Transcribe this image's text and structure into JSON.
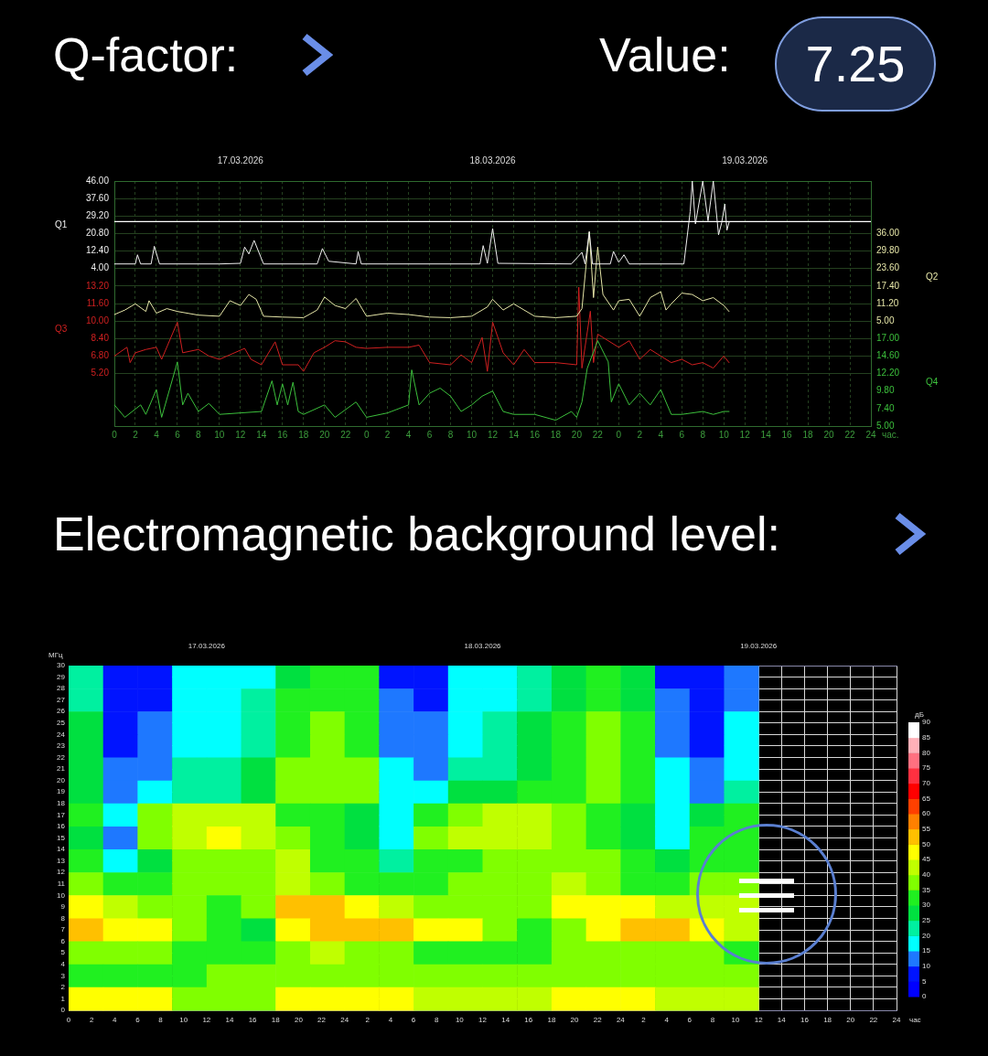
{
  "chart_data": [
    {
      "type": "line",
      "title": "Q-factor:",
      "annotations": [
        "Value:",
        "7.25"
      ],
      "xlim": [
        "2026-03-17T00:00",
        "2026-03-20T00:00"
      ],
      "xticks": [
        {
          "value": "2026-03-17T00:00",
          "label": "0"
        },
        {
          "value": "2026-03-17T02:00",
          "label": "2"
        },
        {
          "value": "2026-03-17T04:00",
          "label": "4"
        },
        {
          "value": "2026-03-17T06:00",
          "label": "6"
        },
        {
          "value": "2026-03-17T08:00",
          "label": "8"
        },
        {
          "value": "2026-03-17T10:00",
          "label": "10"
        },
        {
          "value": "2026-03-17T12:00",
          "label": "12"
        },
        {
          "value": "2026-03-17T14:00",
          "label": "14"
        },
        {
          "value": "2026-03-17T16:00",
          "label": "16"
        },
        {
          "value": "2026-03-17T18:00",
          "label": "18"
        },
        {
          "value": "2026-03-17T20:00",
          "label": "20"
        },
        {
          "value": "2026-03-17T22:00",
          "label": "22"
        },
        {
          "value": "2026-03-18T00:00",
          "label": "0"
        },
        {
          "value": "2026-03-18T02:00",
          "label": "2"
        },
        {
          "value": "2026-03-18T04:00",
          "label": "4"
        },
        {
          "value": "2026-03-18T06:00",
          "label": "6"
        },
        {
          "value": "2026-03-18T08:00",
          "label": "8"
        },
        {
          "value": "2026-03-18T10:00",
          "label": "10"
        },
        {
          "value": "2026-03-18T12:00",
          "label": "12"
        },
        {
          "value": "2026-03-18T14:00",
          "label": "14"
        },
        {
          "value": "2026-03-18T16:00",
          "label": "16"
        },
        {
          "value": "2026-03-18T18:00",
          "label": "18"
        },
        {
          "value": "2026-03-18T20:00",
          "label": "20"
        },
        {
          "value": "2026-03-18T22:00",
          "label": "22"
        },
        {
          "value": "2026-03-19T00:00",
          "label": "0"
        },
        {
          "value": "2026-03-19T02:00",
          "label": "2"
        },
        {
          "value": "2026-03-19T04:00",
          "label": "4"
        },
        {
          "value": "2026-03-19T06:00",
          "label": "6"
        },
        {
          "value": "2026-03-19T08:00",
          "label": "8"
        },
        {
          "value": "2026-03-19T10:00",
          "label": "10"
        },
        {
          "value": "2026-03-19T12:00",
          "label": "12"
        },
        {
          "value": "2026-03-19T14:00",
          "label": "14"
        },
        {
          "value": "2026-03-19T16:00",
          "label": "16"
        },
        {
          "value": "2026-03-19T18:00",
          "label": "18"
        },
        {
          "value": "2026-03-19T20:00",
          "label": "20"
        },
        {
          "value": "2026-03-19T22:00",
          "label": "22"
        },
        {
          "value": "2026-03-20T00:00",
          "label": "24"
        }
      ],
      "xlabel": "час.",
      "x2lim": [
        "2026-03-17T00:00",
        "2026-03-20T00:00"
      ],
      "x2ticks": [
        {
          "value": "2026-03-17T12:00",
          "label": "17.03.2026"
        },
        {
          "value": "2026-03-18T12:00",
          "label": "18.03.2026"
        },
        {
          "value": "2026-03-19T12:00",
          "label": "19.03.2026"
        }
      ],
      "ylim": [
        -71.6,
        46
      ],
      "yticks": [
        {
          "value": 46,
          "label": "46.00"
        },
        {
          "value": 37.6,
          "label": "37.60"
        },
        {
          "value": 29.2,
          "label": "29.20"
        },
        {
          "value": 20.8,
          "label": "20.80"
        },
        {
          "value": 12.4,
          "label": "12.40"
        },
        {
          "value": 4,
          "label": "4.00"
        }
      ],
      "ylabel": "Q1",
      "y2lim": [
        -32.2,
        54.6
      ],
      "y2ticks": [
        {
          "value": 36,
          "label": "36.00"
        },
        {
          "value": 29.8,
          "label": "29.80"
        },
        {
          "value": 23.6,
          "label": "23.60"
        },
        {
          "value": 17.4,
          "label": "17.40"
        },
        {
          "value": 11.2,
          "label": "11.20"
        },
        {
          "value": 5,
          "label": "5.00"
        }
      ],
      "y2label": "Q2",
      "y3lim": [
        0.4,
        22.8
      ],
      "y3ticks": [
        {
          "value": 13.2,
          "label": "13.20"
        },
        {
          "value": 11.6,
          "label": "11.60"
        },
        {
          "value": 10,
          "label": "10.00"
        },
        {
          "value": 8.4,
          "label": "8.40"
        },
        {
          "value": 6.8,
          "label": "6.80"
        },
        {
          "value": 5.2,
          "label": "5.20"
        }
      ],
      "y3label": "Q3",
      "grid": true,
      "ref_lines": [
        {
          "axis": "y",
          "value": 26.5,
          "color": "#ffffff"
        }
      ],
      "series": [
        {
          "color": "#f0f0f0",
          "axis": "y",
          "x": [
            "2026-03-17T00:00",
            "2026-03-17T02:00",
            "2026-03-17T02:12",
            "2026-03-17T02:30",
            "2026-03-17T03:30",
            "2026-03-17T03:48",
            "2026-03-17T04:18",
            "2026-03-17T10:00",
            "2026-03-17T12:00",
            "2026-03-17T12:24",
            "2026-03-17T12:48",
            "2026-03-17T13:18",
            "2026-03-17T14:12",
            "2026-03-17T19:18",
            "2026-03-17T19:48",
            "2026-03-17T20:24",
            "2026-03-17T23:00",
            "2026-03-17T23:12",
            "2026-03-17T23:30",
            "2026-03-18T10:48",
            "2026-03-18T11:06",
            "2026-03-18T11:30",
            "2026-03-18T12:00",
            "2026-03-18T12:30",
            "2026-03-18T19:30",
            "2026-03-18T20:30",
            "2026-03-18T20:48",
            "2026-03-18T21:12",
            "2026-03-18T21:30",
            "2026-03-18T23:12",
            "2026-03-18T23:30",
            "2026-03-19T00:00",
            "2026-03-19T00:30",
            "2026-03-19T01:00",
            "2026-03-19T06:12",
            "2026-03-19T06:48",
            "2026-03-19T07:00",
            "2026-03-19T07:18",
            "2026-03-19T08:00",
            "2026-03-19T08:30",
            "2026-03-19T09:00",
            "2026-03-19T09:30",
            "2026-03-19T09:48",
            "2026-03-19T10:06",
            "2026-03-19T10:18",
            "2026-03-19T10:30"
          ],
          "values": [
            6.2,
            6.2,
            10.6,
            6.2,
            6.2,
            14.7,
            6.2,
            6.2,
            6.5,
            14.3,
            11,
            17.5,
            6.2,
            6.2,
            13.6,
            7.5,
            6.2,
            12.1,
            6.2,
            6.2,
            15,
            6.5,
            23.2,
            6.5,
            6.2,
            11.8,
            6.2,
            21.7,
            6.2,
            6.2,
            12.2,
            7,
            10.6,
            6.2,
            6.2,
            31.3,
            46,
            25.4,
            46,
            26.9,
            46,
            20.2,
            26,
            35,
            22.4,
            26.1
          ]
        },
        {
          "color": "#e6e6a8",
          "axis": "y2",
          "x": [
            "2026-03-17T00:00",
            "2026-03-17T01:00",
            "2026-03-17T02:00",
            "2026-03-17T03:00",
            "2026-03-17T03:18",
            "2026-03-17T04:00",
            "2026-03-17T05:00",
            "2026-03-17T06:00",
            "2026-03-17T08:00",
            "2026-03-17T10:00",
            "2026-03-17T11:00",
            "2026-03-17T12:00",
            "2026-03-17T12:48",
            "2026-03-17T13:30",
            "2026-03-17T14:12",
            "2026-03-17T16:00",
            "2026-03-17T18:00",
            "2026-03-17T19:18",
            "2026-03-17T20:00",
            "2026-03-17T21:00",
            "2026-03-17T22:00",
            "2026-03-17T23:00",
            "2026-03-18T00:00",
            "2026-03-18T02:00",
            "2026-03-18T04:00",
            "2026-03-18T06:00",
            "2026-03-18T08:00",
            "2026-03-18T10:00",
            "2026-03-18T11:30",
            "2026-03-18T12:00",
            "2026-03-18T13:00",
            "2026-03-18T14:00",
            "2026-03-18T14:30",
            "2026-03-18T16:00",
            "2026-03-18T18:00",
            "2026-03-18T20:00",
            "2026-03-18T20:30",
            "2026-03-18T21:12",
            "2026-03-18T21:36",
            "2026-03-18T22:00",
            "2026-03-18T22:30",
            "2026-03-18T23:30",
            "2026-03-19T00:00",
            "2026-03-19T01:00",
            "2026-03-19T02:00",
            "2026-03-19T03:00",
            "2026-03-19T04:00",
            "2026-03-19T04:30",
            "2026-03-19T05:00",
            "2026-03-19T06:00",
            "2026-03-19T07:00",
            "2026-03-19T08:00",
            "2026-03-19T09:00",
            "2026-03-19T10:00",
            "2026-03-19T10:30"
          ],
          "values": [
            7.3,
            8.9,
            11.1,
            8.4,
            12.2,
            7.8,
            9.4,
            8.4,
            7.1,
            6.7,
            12.2,
            10.5,
            14.4,
            12.7,
            6.7,
            6.4,
            6.2,
            8.9,
            13.5,
            10.5,
            9.4,
            13.0,
            6.7,
            7.8,
            7.3,
            6.4,
            6.2,
            6.7,
            10.0,
            12.7,
            8.9,
            11.1,
            10.0,
            6.7,
            6.2,
            6.7,
            9.4,
            36.6,
            13.3,
            31.2,
            14.4,
            8.9,
            12.2,
            12.7,
            6.7,
            13.3,
            15.4,
            8.9,
            11.1,
            14.9,
            14.4,
            12.2,
            13.3,
            10.5,
            8.4
          ]
        },
        {
          "color": "#d02020",
          "axis": "y3",
          "x": [
            "2026-03-17T00:00",
            "2026-03-17T01:12",
            "2026-03-17T01:30",
            "2026-03-17T02:00",
            "2026-03-17T03:00",
            "2026-03-17T04:00",
            "2026-03-17T04:30",
            "2026-03-17T06:00",
            "2026-03-17T06:30",
            "2026-03-17T08:00",
            "2026-03-17T09:00",
            "2026-03-17T10:00",
            "2026-03-17T12:24",
            "2026-03-17T13:00",
            "2026-03-17T14:00",
            "2026-03-17T15:18",
            "2026-03-17T16:00",
            "2026-03-17T17:30",
            "2026-03-17T18:00",
            "2026-03-17T19:00",
            "2026-03-17T20:00",
            "2026-03-17T21:00",
            "2026-03-17T22:00",
            "2026-03-17T23:00",
            "2026-03-18T00:00",
            "2026-03-18T02:00",
            "2026-03-18T04:00",
            "2026-03-18T05:00",
            "2026-03-18T06:00",
            "2026-03-18T08:00",
            "2026-03-18T09:00",
            "2026-03-18T10:00",
            "2026-03-18T11:00",
            "2026-03-18T11:30",
            "2026-03-18T12:00",
            "2026-03-18T13:00",
            "2026-03-18T14:00",
            "2026-03-18T15:00",
            "2026-03-18T16:00",
            "2026-03-18T18:00",
            "2026-03-18T20:00",
            "2026-03-18T20:12",
            "2026-03-18T20:30",
            "2026-03-18T21:18",
            "2026-03-18T21:36",
            "2026-03-18T22:00",
            "2026-03-18T23:00",
            "2026-03-19T00:00",
            "2026-03-19T01:00",
            "2026-03-19T02:00",
            "2026-03-19T03:00",
            "2026-03-19T04:00",
            "2026-03-19T05:00",
            "2026-03-19T06:00",
            "2026-03-19T07:00",
            "2026-03-19T08:00",
            "2026-03-19T09:00",
            "2026-03-19T10:00",
            "2026-03-19T10:30"
          ],
          "values": [
            6.8,
            7.6,
            6.2,
            7.1,
            7.4,
            7.6,
            6.5,
            9.9,
            7.1,
            7.4,
            6.8,
            6.5,
            7.5,
            6.5,
            6.0,
            8.1,
            6.0,
            6.0,
            5.4,
            7.1,
            7.6,
            8.2,
            8.1,
            7.6,
            7.5,
            7.6,
            7.6,
            7.8,
            6.2,
            6.0,
            6.9,
            6.2,
            8.5,
            5.4,
            9.9,
            7.1,
            6.0,
            7.4,
            6.2,
            6.2,
            6.0,
            13.1,
            5.7,
            10.9,
            6.2,
            8.8,
            8.2,
            7.6,
            8.2,
            6.5,
            7.4,
            6.8,
            6.2,
            6.5,
            6.0,
            6.2,
            5.7,
            6.8,
            6.2
          ]
        }
      ]
    },
    {
      "type": "line",
      "xlim": [
        "2026-03-17T00:00",
        "2026-03-20T00:00"
      ],
      "tick_labels": "y",
      "y2lim": [
        5,
        38.6
      ],
      "y2ticks": [
        {
          "value": 17,
          "label": "17.00"
        },
        {
          "value": 14.6,
          "label": "14.60"
        },
        {
          "value": 12.2,
          "label": "12.20"
        },
        {
          "value": 9.8,
          "label": "9.80"
        },
        {
          "value": 7.4,
          "label": "7.40"
        },
        {
          "value": 5,
          "label": "5.00"
        }
      ],
      "y2label": "Q4",
      "series": [
        {
          "color": "#3cc03c",
          "axis": "y2",
          "x": [
            "2026-03-17T00:00",
            "2026-03-17T01:00",
            "2026-03-17T02:30",
            "2026-03-17T03:00",
            "2026-03-17T04:00",
            "2026-03-17T04:30",
            "2026-03-17T06:00",
            "2026-03-17T06:30",
            "2026-03-17T07:00",
            "2026-03-17T08:00",
            "2026-03-17T09:00",
            "2026-03-17T10:00",
            "2026-03-17T12:00",
            "2026-03-17T14:00",
            "2026-03-17T15:00",
            "2026-03-17T15:30",
            "2026-03-17T16:00",
            "2026-03-17T16:30",
            "2026-03-17T17:00",
            "2026-03-17T17:30",
            "2026-03-17T18:00",
            "2026-03-17T20:00",
            "2026-03-17T21:00",
            "2026-03-17T23:00",
            "2026-03-18T00:00",
            "2026-03-18T02:00",
            "2026-03-18T04:00",
            "2026-03-18T04:18",
            "2026-03-18T05:00",
            "2026-03-18T06:00",
            "2026-03-18T07:00",
            "2026-03-18T08:00",
            "2026-03-18T09:00",
            "2026-03-18T10:00",
            "2026-03-18T11:00",
            "2026-03-18T12:00",
            "2026-03-18T13:00",
            "2026-03-18T14:00",
            "2026-03-18T16:00",
            "2026-03-18T18:00",
            "2026-03-18T19:30",
            "2026-03-18T20:00",
            "2026-03-18T20:30",
            "2026-03-18T21:00",
            "2026-03-18T22:00",
            "2026-03-18T23:00",
            "2026-03-18T23:18",
            "2026-03-19T00:00",
            "2026-03-19T01:00",
            "2026-03-19T02:00",
            "2026-03-19T03:00",
            "2026-03-19T04:00",
            "2026-03-19T05:00",
            "2026-03-19T06:00",
            "2026-03-19T08:00",
            "2026-03-19T09:00",
            "2026-03-19T10:00",
            "2026-03-19T10:30"
          ],
          "values": [
            7.9,
            6.2,
            7.9,
            6.6,
            10.0,
            6.2,
            13.8,
            7.9,
            9.5,
            7.0,
            8.1,
            6.6,
            6.8,
            7.0,
            11.2,
            7.9,
            10.8,
            7.9,
            11.0,
            7.0,
            6.6,
            7.9,
            6.2,
            8.3,
            6.2,
            6.8,
            7.9,
            12.7,
            7.9,
            9.5,
            10.2,
            9.1,
            7.0,
            7.9,
            9.1,
            9.8,
            7.0,
            6.6,
            6.6,
            5.8,
            7.0,
            6.2,
            8.3,
            12.9,
            16.7,
            13.8,
            8.3,
            10.8,
            7.9,
            9.5,
            7.9,
            10.0,
            6.6,
            6.6,
            7.0,
            6.6,
            7.0,
            7.0
          ]
        }
      ]
    },
    {
      "type": "heatmap",
      "title": "Electromagnetic background level:",
      "xlim": [
        "2026-03-17T00:00",
        "2026-03-20T00:00"
      ],
      "xticks": [
        {
          "value": "2026-03-17T00:00",
          "label": "0"
        },
        {
          "value": "2026-03-17T02:00",
          "label": "2"
        },
        {
          "value": "2026-03-17T04:00",
          "label": "4"
        },
        {
          "value": "2026-03-17T06:00",
          "label": "6"
        },
        {
          "value": "2026-03-17T08:00",
          "label": "8"
        },
        {
          "value": "2026-03-17T10:00",
          "label": "10"
        },
        {
          "value": "2026-03-17T12:00",
          "label": "12"
        },
        {
          "value": "2026-03-17T14:00",
          "label": "14"
        },
        {
          "value": "2026-03-17T16:00",
          "label": "16"
        },
        {
          "value": "2026-03-17T18:00",
          "label": "18"
        },
        {
          "value": "2026-03-17T20:00",
          "label": "20"
        },
        {
          "value": "2026-03-17T22:00",
          "label": "22"
        },
        {
          "value": "2026-03-18T00:00",
          "label": "24"
        },
        {
          "value": "2026-03-18T02:00",
          "label": "2"
        },
        {
          "value": "2026-03-18T04:00",
          "label": "4"
        },
        {
          "value": "2026-03-18T06:00",
          "label": "6"
        },
        {
          "value": "2026-03-18T08:00",
          "label": "8"
        },
        {
          "value": "2026-03-18T10:00",
          "label": "10"
        },
        {
          "value": "2026-03-18T12:00",
          "label": "12"
        },
        {
          "value": "2026-03-18T14:00",
          "label": "14"
        },
        {
          "value": "2026-03-18T16:00",
          "label": "16"
        },
        {
          "value": "2026-03-18T18:00",
          "label": "18"
        },
        {
          "value": "2026-03-18T20:00",
          "label": "20"
        },
        {
          "value": "2026-03-18T22:00",
          "label": "22"
        },
        {
          "value": "2026-03-19T00:00",
          "label": "24"
        },
        {
          "value": "2026-03-19T02:00",
          "label": "2"
        },
        {
          "value": "2026-03-19T04:00",
          "label": "4"
        },
        {
          "value": "2026-03-19T06:00",
          "label": "6"
        },
        {
          "value": "2026-03-19T08:00",
          "label": "8"
        },
        {
          "value": "2026-03-19T10:00",
          "label": "10"
        },
        {
          "value": "2026-03-19T12:00",
          "label": "12"
        },
        {
          "value": "2026-03-19T14:00",
          "label": "14"
        },
        {
          "value": "2026-03-19T16:00",
          "label": "16"
        },
        {
          "value": "2026-03-19T18:00",
          "label": "18"
        },
        {
          "value": "2026-03-19T20:00",
          "label": "20"
        },
        {
          "value": "2026-03-19T22:00",
          "label": "22"
        },
        {
          "value": "2026-03-20T00:00",
          "label": "24"
        }
      ],
      "xlabel": "час",
      "x2lim": [
        "2026-03-17T00:00",
        "2026-03-20T00:00"
      ],
      "x2ticks": [
        {
          "value": "2026-03-17T12:00",
          "label": "17.03.2026"
        },
        {
          "value": "2026-03-18T12:00",
          "label": "18.03.2026"
        },
        {
          "value": "2026-03-19T12:00",
          "label": "19.03.2026"
        }
      ],
      "ylim": [
        0,
        30
      ],
      "yticks": [
        0,
        1,
        2,
        3,
        4,
        5,
        6,
        7,
        8,
        9,
        10,
        11,
        12,
        13,
        14,
        15,
        16,
        17,
        18,
        19,
        20,
        21,
        22,
        23,
        24,
        25,
        26,
        27,
        28,
        29,
        30
      ],
      "ylabel": "МГц",
      "clim": [
        0,
        90
      ],
      "cticks": [
        0,
        5,
        10,
        15,
        20,
        25,
        30,
        35,
        40,
        45,
        50,
        55,
        60,
        65,
        70,
        75,
        80,
        85,
        90
      ],
      "clabel": "дБ",
      "grid": true,
      "cells": [
        [
          22,
          5,
          7,
          15,
          15,
          19,
          29,
          32,
          30,
          9,
          7,
          15,
          17,
          22,
          27,
          32,
          27,
          9,
          5,
          12,
          null,
          null,
          null,
          null
        ],
        [
          23,
          6,
          8,
          16,
          16,
          20,
          30,
          33,
          31,
          10,
          8,
          16,
          18,
          23,
          28,
          33,
          28,
          10,
          6,
          13,
          null,
          null,
          null,
          null
        ],
        [
          25,
          8,
          10,
          18,
          18,
          22,
          32,
          35,
          33,
          12,
          10,
          18,
          20,
          25,
          30,
          35,
          30,
          12,
          8,
          15,
          null,
          null,
          null,
          null
        ],
        [
          26,
          9,
          11,
          19,
          19,
          23,
          33,
          36,
          34,
          13,
          11,
          19,
          21,
          26,
          31,
          36,
          31,
          13,
          9,
          16,
          null,
          null,
          null,
          null
        ],
        [
          28,
          11,
          13,
          21,
          21,
          25,
          35,
          38,
          36,
          15,
          13,
          21,
          23,
          28,
          33,
          38,
          33,
          15,
          11,
          18,
          null,
          null,
          null,
          null
        ],
        [
          28,
          12,
          15,
          22,
          24,
          27,
          35,
          38,
          35,
          16,
          16,
          25,
          28,
          30,
          33,
          36,
          33,
          16,
          14,
          20,
          null,
          null,
          null,
          null
        ],
        [
          30,
          15,
          35,
          40,
          42,
          40,
          32,
          30,
          28,
          18,
          30,
          38,
          40,
          42,
          35,
          30,
          28,
          18,
          25,
          30,
          null,
          null,
          null,
          null
        ],
        [
          28,
          12,
          38,
          42,
          45,
          42,
          38,
          32,
          28,
          15,
          35,
          40,
          42,
          42,
          38,
          32,
          25,
          15,
          30,
          30,
          null,
          null,
          null,
          null
        ],
        [
          30,
          18,
          25,
          35,
          35,
          38,
          40,
          32,
          30,
          22,
          30,
          32,
          35,
          35,
          38,
          35,
          30,
          25,
          30,
          30,
          null,
          null,
          null,
          null
        ],
        [
          35,
          30,
          32,
          35,
          35,
          38,
          40,
          38,
          33,
          30,
          32,
          35,
          35,
          35,
          40,
          38,
          32,
          30,
          35,
          35,
          null,
          null,
          null,
          null
        ],
        [
          45,
          40,
          38,
          36,
          33,
          38,
          50,
          50,
          45,
          40,
          38,
          38,
          38,
          38,
          45,
          48,
          45,
          40,
          42,
          40,
          null,
          null,
          null,
          null
        ],
        [
          50,
          48,
          45,
          35,
          30,
          28,
          45,
          50,
          50,
          50,
          48,
          45,
          38,
          32,
          35,
          48,
          50,
          50,
          48,
          42,
          null,
          null,
          null,
          null
        ],
        [
          35,
          35,
          35,
          32,
          30,
          30,
          38,
          40,
          35,
          35,
          33,
          32,
          30,
          30,
          35,
          38,
          38,
          35,
          35,
          33,
          null,
          null,
          null,
          null
        ],
        [
          32,
          33,
          33,
          30,
          35,
          35,
          35,
          35,
          35,
          35,
          35,
          35,
          35,
          35,
          35,
          38,
          38,
          35,
          35,
          35,
          null,
          null,
          null,
          null
        ],
        [
          45,
          45,
          45,
          35,
          38,
          38,
          48,
          48,
          45,
          45,
          42,
          40,
          40,
          40,
          45,
          48,
          45,
          42,
          42,
          40,
          null,
          null,
          null,
          null
        ]
      ]
    }
  ]
}
